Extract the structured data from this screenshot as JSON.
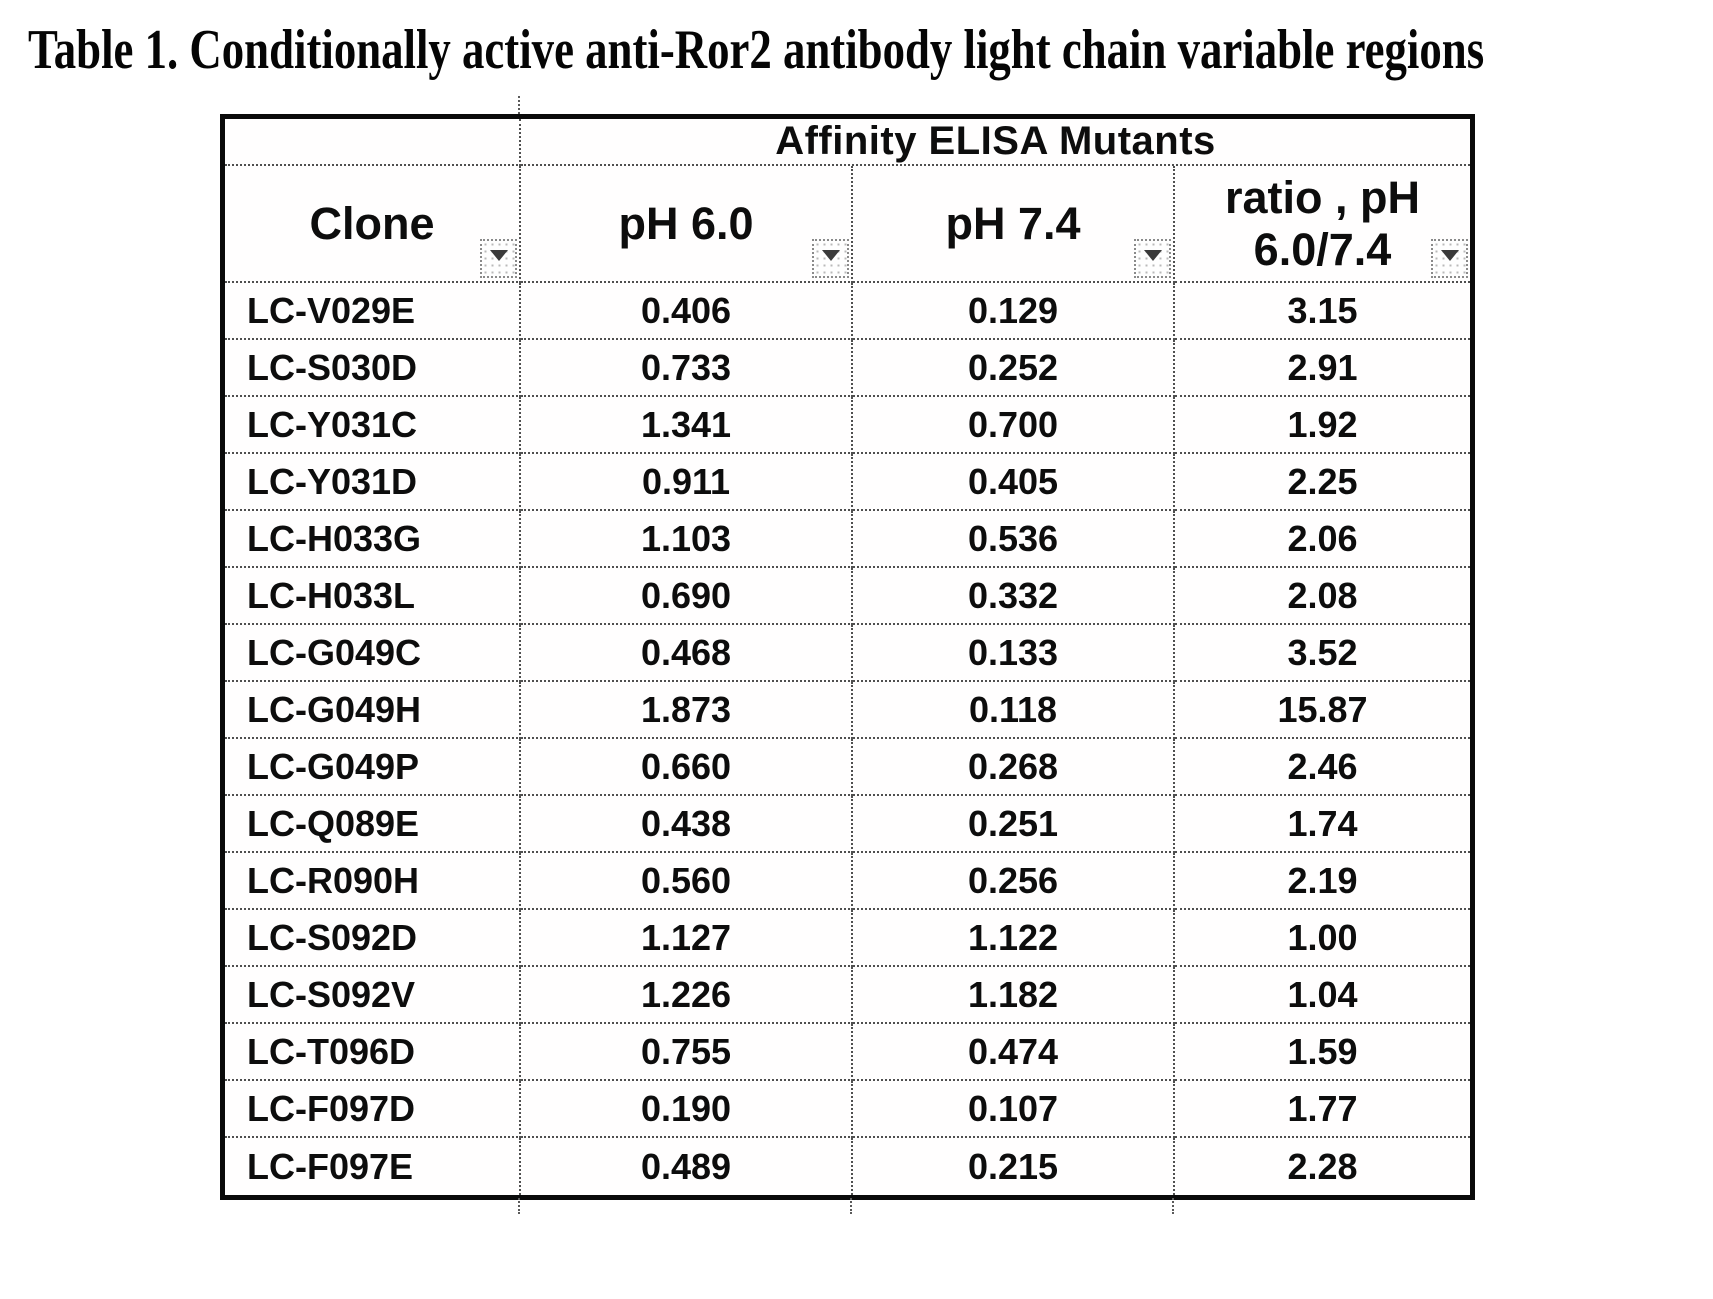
{
  "title": "Table 1. Conditionally active anti-Ror2 antibody light chain variable regions",
  "colors": {
    "ink": "#0a0a0a",
    "background": "#ffffff",
    "grid_dotted": "#4f4f4f"
  },
  "icons": {
    "filter_dropdown": "▼ (triangle-down autofilter glyph)"
  },
  "table": {
    "group_header": "Affinity ELISA Mutants",
    "columns": [
      {
        "label": "Clone"
      },
      {
        "label": "pH 6.0"
      },
      {
        "label": "pH 7.4"
      },
      {
        "line1": "ratio , pH",
        "line2": "6.0/7.4"
      }
    ],
    "rows": [
      [
        "LC-V029E",
        "0.406",
        "0.129",
        "3.15"
      ],
      [
        "LC-S030D",
        "0.733",
        "0.252",
        "2.91"
      ],
      [
        "LC-Y031C",
        "1.341",
        "0.700",
        "1.92"
      ],
      [
        "LC-Y031D",
        "0.911",
        "0.405",
        "2.25"
      ],
      [
        "LC-H033G",
        "1.103",
        "0.536",
        "2.06"
      ],
      [
        "LC-H033L",
        "0.690",
        "0.332",
        "2.08"
      ],
      [
        "LC-G049C",
        "0.468",
        "0.133",
        "3.52"
      ],
      [
        "LC-G049H",
        "1.873",
        "0.118",
        "15.87"
      ],
      [
        "LC-G049P",
        "0.660",
        "0.268",
        "2.46"
      ],
      [
        "LC-Q089E",
        "0.438",
        "0.251",
        "1.74"
      ],
      [
        "LC-R090H",
        "0.560",
        "0.256",
        "2.19"
      ],
      [
        "LC-S092D",
        "1.127",
        "1.122",
        "1.00"
      ],
      [
        "LC-S092V",
        "1.226",
        "1.182",
        "1.04"
      ],
      [
        "LC-T096D",
        "0.755",
        "0.474",
        "1.59"
      ],
      [
        "LC-F097D",
        "0.190",
        "0.107",
        "1.77"
      ],
      [
        "LC-F097E",
        "0.489",
        "0.215",
        "2.28"
      ]
    ]
  }
}
